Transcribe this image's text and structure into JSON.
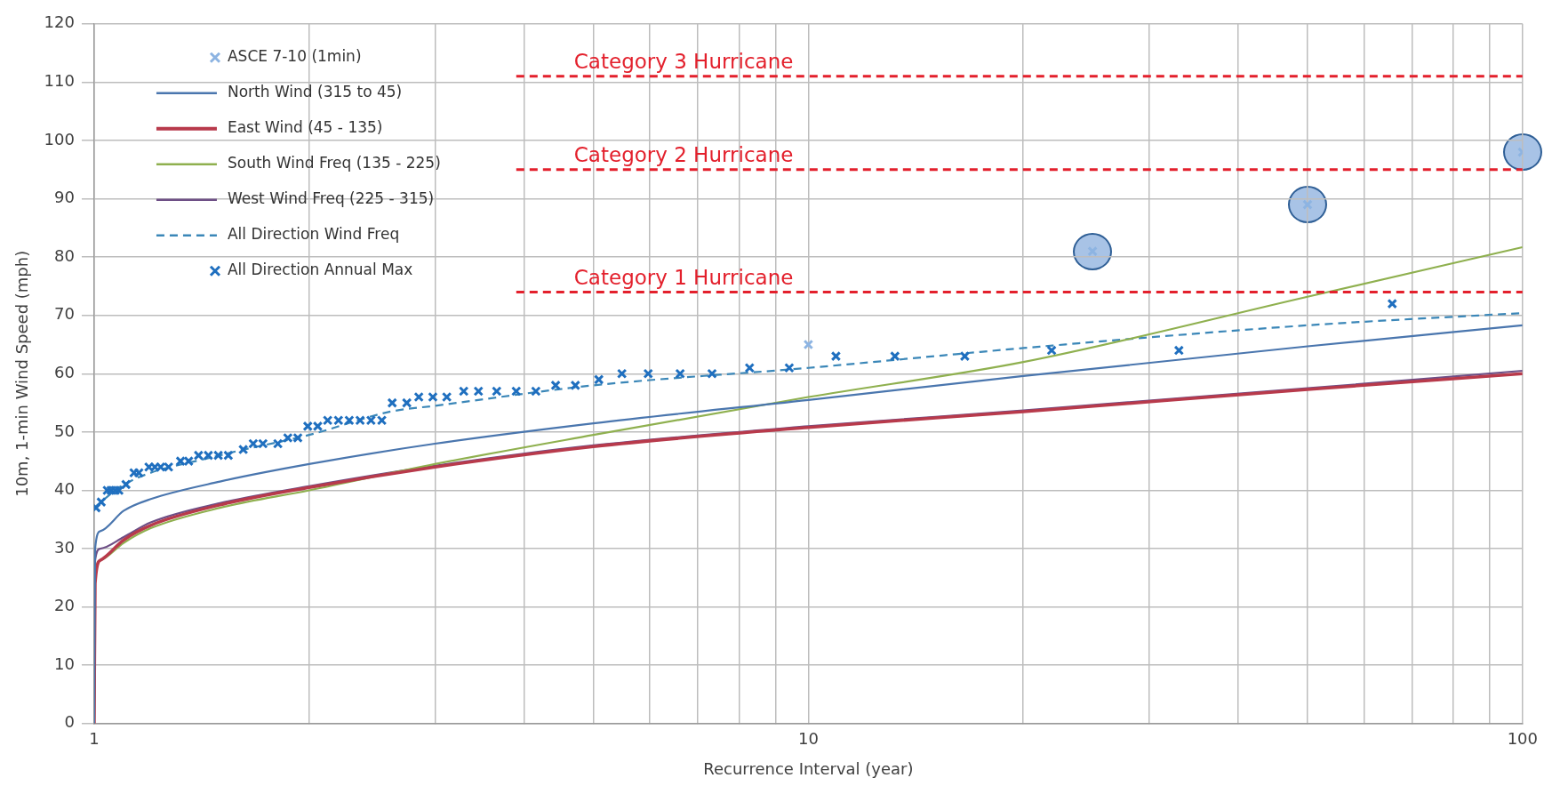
{
  "chart_data": {
    "type": "line",
    "xlabel": "Recurrence Interval (year)",
    "ylabel": "10m, 1-min Wind Speed (mph)",
    "log": "x",
    "grid": true,
    "legend": "top left",
    "xlim": [
      1,
      100
    ],
    "xticks": [
      1,
      {
        "value": 2,
        "label": null
      },
      {
        "value": 3,
        "label": null
      },
      {
        "value": 4,
        "label": null
      },
      {
        "value": 5,
        "label": null
      },
      {
        "value": 6,
        "label": null
      },
      {
        "value": 7,
        "label": null
      },
      {
        "value": 8,
        "label": null
      },
      {
        "value": 9,
        "label": null
      },
      10,
      {
        "value": 20,
        "label": null
      },
      {
        "value": 30,
        "label": null
      },
      {
        "value": 40,
        "label": null
      },
      {
        "value": 50,
        "label": null
      },
      {
        "value": 60,
        "label": null
      },
      {
        "value": 70,
        "label": null
      },
      {
        "value": 80,
        "label": null
      },
      {
        "value": 90,
        "label": null
      },
      100
    ],
    "ylim": [
      0,
      120
    ],
    "yticks": [
      0,
      10,
      20,
      30,
      40,
      50,
      60,
      70,
      80,
      90,
      100,
      110,
      120
    ],
    "series": [
      {
        "name": "ASCE 7-10 (1min)",
        "type": "scatter",
        "marker": "cross",
        "color": "#8db4e2",
        "x": [
          10,
          25,
          50,
          100
        ],
        "values": [
          65,
          81,
          89,
          98
        ]
      },
      {
        "name": "North Wind (315 to 45)",
        "color": "#4a76ae",
        "line_style": "solid",
        "x": [
          1,
          1.003,
          1.02,
          1.1,
          1.2,
          1.5,
          2,
          3,
          5,
          10,
          20,
          50,
          100
        ],
        "values": [
          0,
          30,
          33,
          36.5,
          38.5,
          41.5,
          44.5,
          48,
          51.5,
          55.5,
          59.6,
          64.7,
          68.3
        ]
      },
      {
        "name": "East Wind (45 - 135)",
        "color": "#b83a4b",
        "line_style": "solid",
        "x": [
          1,
          1.003,
          1.02,
          1.1,
          1.2,
          1.5,
          2,
          3,
          5,
          10,
          20,
          50,
          100
        ],
        "values": [
          0,
          24,
          28,
          31.5,
          34,
          37.5,
          40.5,
          44,
          47.5,
          50.8,
          53.5,
          57.3,
          60
        ]
      },
      {
        "name": "South Wind Freq (135 - 225)",
        "color": "#8fb04f",
        "line_style": "solid",
        "x": [
          1,
          1.003,
          1.02,
          1.1,
          1.2,
          1.5,
          2,
          3,
          5,
          10,
          20,
          50,
          100
        ],
        "values": [
          0,
          25,
          28,
          31,
          33.5,
          37,
          40,
          44.5,
          49.5,
          56,
          62,
          73.2,
          81.7
        ]
      },
      {
        "name": "West Wind Freq (225 - 315)",
        "color": "#6e4f86",
        "line_style": "solid",
        "x": [
          1,
          1.003,
          1.02,
          1.1,
          1.2,
          1.5,
          2,
          3,
          5,
          10,
          20,
          50,
          100
        ],
        "values": [
          0,
          28,
          30,
          32,
          34.5,
          37.8,
          40.7,
          44.2,
          47.7,
          51,
          53.7,
          57.5,
          60.5
        ]
      },
      {
        "name": "All Direction Wind Freq",
        "color": "#3b87b8",
        "line_style": "dashed",
        "x": [
          1,
          1.1,
          1.5,
          2,
          2.6,
          3,
          5,
          10,
          20,
          50,
          100
        ],
        "values": [
          37,
          41,
          46,
          49.5,
          53.5,
          54.5,
          58,
          61,
          64.4,
          68.3,
          70.4
        ]
      },
      {
        "name": "All Direction Annual Max",
        "type": "scatter",
        "marker": "cross",
        "color": "#1f6fbf",
        "x": [
          1.006,
          1.023,
          1.043,
          1.056,
          1.07,
          1.083,
          1.108,
          1.137,
          1.155,
          1.193,
          1.216,
          1.239,
          1.271,
          1.321,
          1.356,
          1.4,
          1.445,
          1.492,
          1.541,
          1.617,
          1.67,
          1.723,
          1.808,
          1.867,
          1.928,
          1.991,
          2.056,
          2.123,
          2.198,
          2.276,
          2.357,
          2.441,
          2.528,
          2.614,
          2.74,
          2.848,
          2.98,
          3.117,
          3.292,
          3.452,
          3.661,
          3.899,
          4.154,
          4.427,
          4.718,
          5.089,
          5.482,
          5.967,
          6.614,
          7.33,
          8.274,
          9.403,
          10.93,
          13.22,
          16.56,
          21.91,
          33.03,
          65.7
        ],
        "values": [
          37,
          38,
          40,
          40,
          40,
          40,
          41,
          43,
          43,
          44,
          44,
          44,
          44,
          45,
          45,
          46,
          46,
          46,
          46,
          47,
          48,
          48,
          48,
          49,
          49,
          51,
          51,
          52,
          52,
          52,
          52,
          52,
          52,
          55,
          55,
          56,
          56,
          56,
          57,
          57,
          57,
          57,
          57,
          58,
          58,
          59,
          60,
          60,
          60,
          60,
          61,
          61,
          63,
          63,
          63,
          64,
          64,
          72
        ]
      }
    ],
    "ref_lines": [
      {
        "axis": "y",
        "value": 111,
        "label": "Category 3 Hurricane",
        "color": "#e3202c",
        "line_style": "dashed"
      },
      {
        "axis": "y",
        "value": 95,
        "label": "Category 2 Hurricane",
        "color": "#e3202c",
        "line_style": "dashed"
      },
      {
        "axis": "y",
        "value": 74,
        "label": "Category 1 Hurricane",
        "color": "#e3202c",
        "line_style": "dashed"
      }
    ]
  }
}
